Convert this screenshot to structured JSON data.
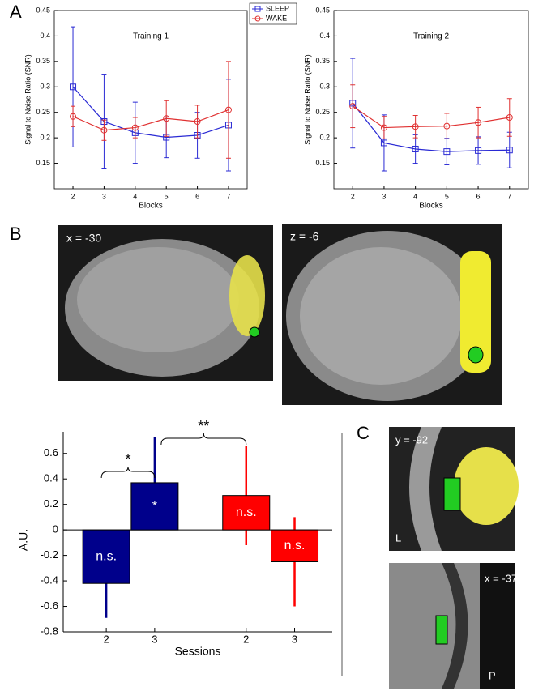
{
  "panel_letters": [
    "A",
    "B",
    "C"
  ],
  "image_labels": {
    "sagittal": "x = -30",
    "axial": "z = -6",
    "coronal": "y = -92",
    "coronal_side": "L",
    "sagittal_small": "x = -37",
    "sagittal_small_side": "P"
  },
  "chart_data": [
    {
      "type": "line",
      "title": "Training 1",
      "xlabel": "Blocks",
      "ylabel": "Signal to Noise Ratio (SNR)",
      "x": [
        2,
        3,
        4,
        5,
        6,
        7
      ],
      "xlim": [
        1.4,
        7.6
      ],
      "xticks": [
        2,
        3,
        4,
        5,
        6,
        7
      ],
      "ylim": [
        0.1,
        0.45
      ],
      "yticks": [
        0.15,
        0.2,
        0.25,
        0.3,
        0.35,
        0.4,
        0.45
      ],
      "legend": "top-right",
      "series": [
        {
          "name": "SLEEP",
          "color": "#2a2ad4",
          "marker": "square",
          "values": [
            0.3,
            0.232,
            0.21,
            0.201,
            0.205,
            0.225
          ],
          "errors": [
            0.118,
            0.093,
            0.06,
            0.04,
            0.045,
            0.09
          ]
        },
        {
          "name": "WAKE",
          "color": "#e03030",
          "marker": "circle",
          "values": [
            0.242,
            0.215,
            0.22,
            0.238,
            0.232,
            0.255
          ],
          "errors": [
            0.02,
            0.02,
            0.02,
            0.035,
            0.032,
            0.095
          ]
        }
      ]
    },
    {
      "type": "line",
      "title": "Training 2",
      "xlabel": "Blocks",
      "ylabel": "Signal to Noise Ratio (SNR)",
      "x": [
        2,
        3,
        4,
        5,
        6,
        7
      ],
      "xlim": [
        1.4,
        7.6
      ],
      "xticks": [
        2,
        3,
        4,
        5,
        6,
        7
      ],
      "ylim": [
        0.1,
        0.45
      ],
      "yticks": [
        0.15,
        0.2,
        0.25,
        0.3,
        0.35,
        0.4,
        0.45
      ],
      "series": [
        {
          "color": "#2a2ad4",
          "marker": "square",
          "values": [
            0.268,
            0.19,
            0.178,
            0.173,
            0.175,
            0.176
          ],
          "errors": [
            0.088,
            0.055,
            0.028,
            0.026,
            0.027,
            0.035
          ]
        },
        {
          "color": "#e03030",
          "marker": "circle",
          "values": [
            0.262,
            0.22,
            0.222,
            0.223,
            0.23,
            0.24
          ],
          "errors": [
            0.042,
            0.022,
            0.022,
            0.025,
            0.03,
            0.037
          ]
        }
      ]
    },
    {
      "type": "bar",
      "xlabel": "Sessions",
      "ylabel": "A.U.",
      "categories": [
        "2",
        "3",
        "2",
        "3"
      ],
      "values": [
        -0.42,
        0.37,
        0.27,
        -0.25
      ],
      "errors": [
        0.27,
        0.36,
        0.39,
        0.35
      ],
      "colors": [
        "#00008b",
        "#00008b",
        "#ff0000",
        "#ff0000"
      ],
      "annotations": [
        "n.s.",
        "*",
        "n.s.",
        "n.s."
      ],
      "significance": [
        "*",
        "**"
      ],
      "ylim": [
        -0.8,
        0.77
      ],
      "yticks": [
        -0.8,
        -0.6,
        -0.4,
        -0.2,
        0,
        0.2,
        0.4,
        0.6
      ]
    }
  ]
}
